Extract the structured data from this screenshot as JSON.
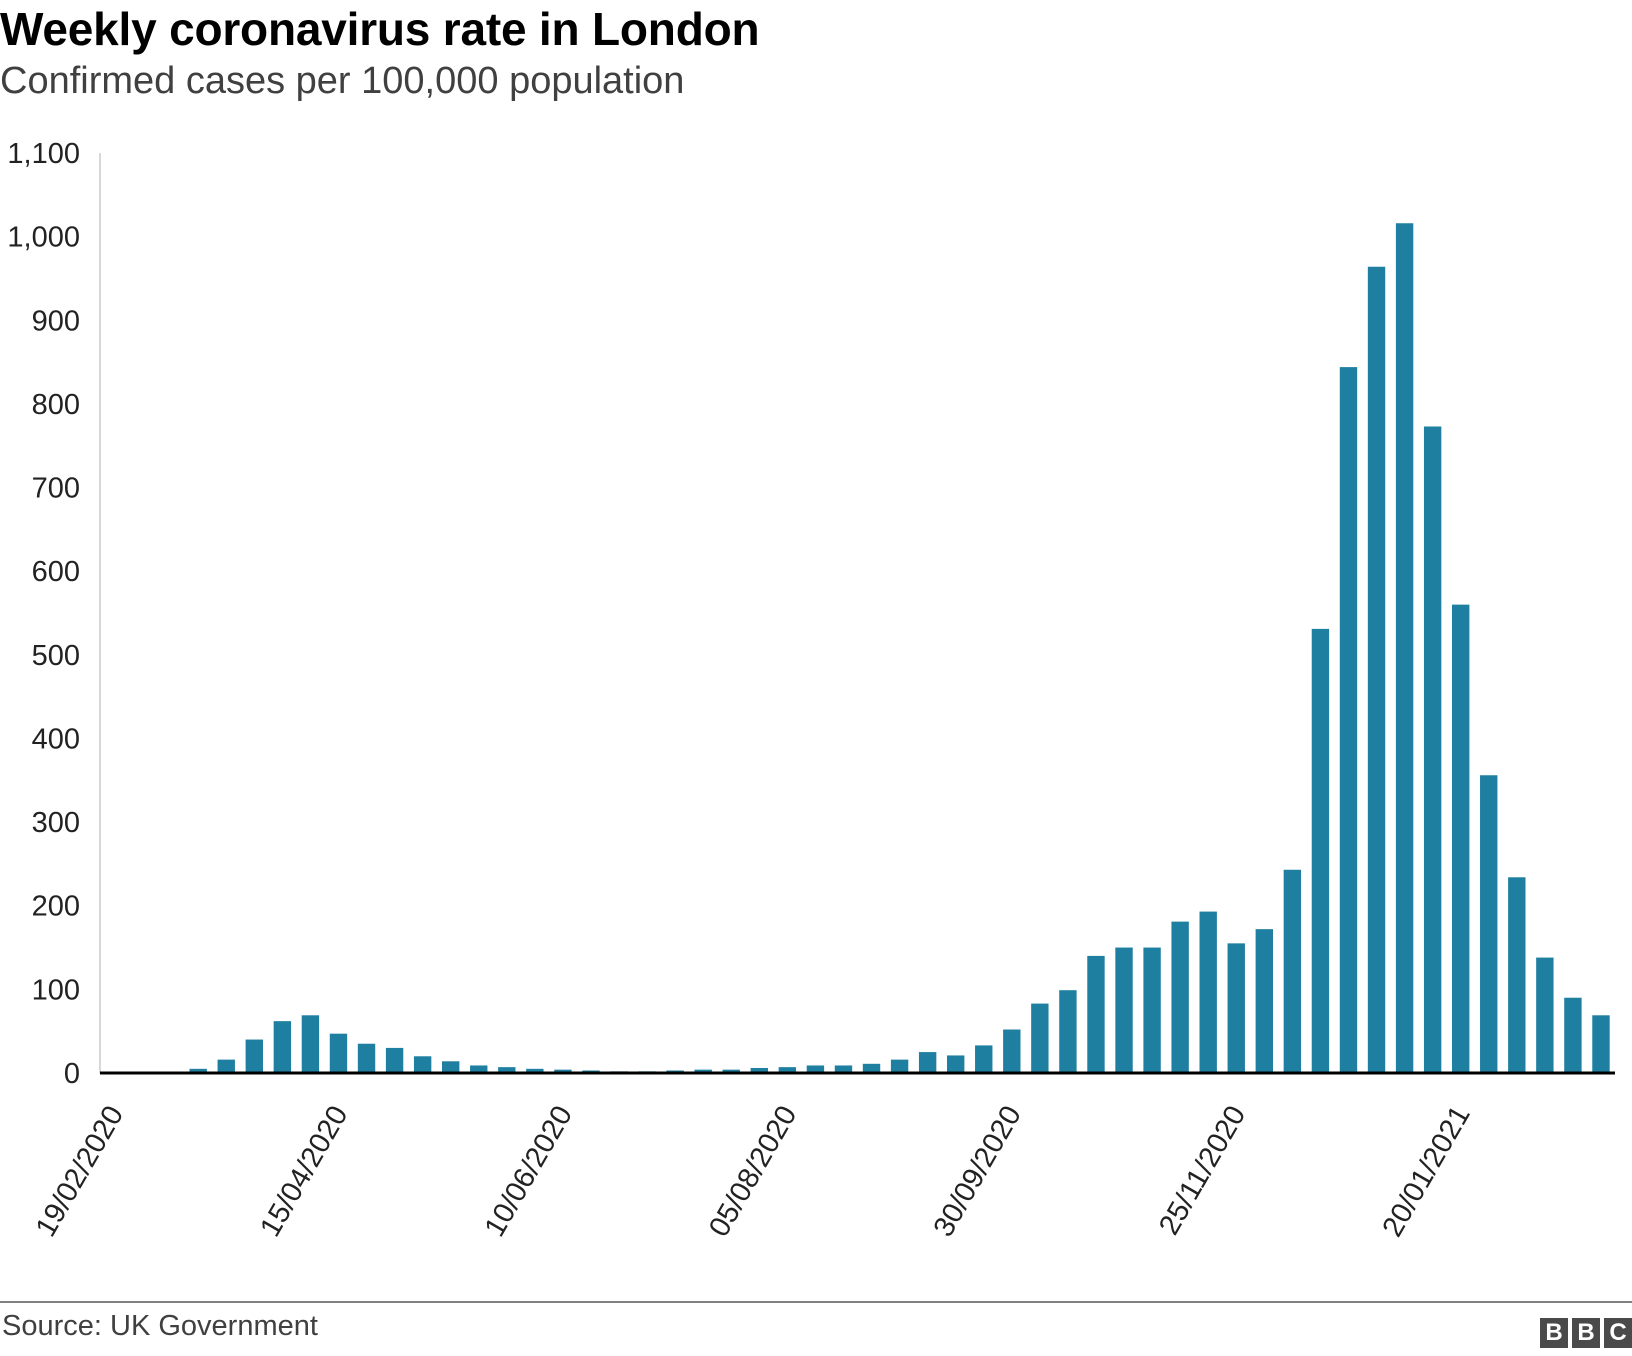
{
  "chart_data": {
    "type": "bar",
    "title": "Weekly coronavirus rate in London",
    "subtitle": "Confirmed cases per 100,000 population",
    "xlabel": "",
    "ylabel": "",
    "ylim": [
      0,
      1100
    ],
    "y_ticks": [
      0,
      100,
      200,
      300,
      400,
      500,
      600,
      700,
      800,
      900,
      1000,
      1100
    ],
    "y_tick_labels": [
      "0",
      "100",
      "200",
      "300",
      "400",
      "500",
      "600",
      "700",
      "800",
      "900",
      "1,000",
      "1,100"
    ],
    "x_tick_labels": [
      "19/02/2020",
      "15/04/2020",
      "10/06/2020",
      "05/08/2020",
      "30/09/2020",
      "25/11/2020",
      "20/01/2021"
    ],
    "x_tick_index": [
      0,
      8,
      16,
      24,
      32,
      40,
      48
    ],
    "color": "#1f7fa0",
    "grid": false,
    "values": [
      0,
      0,
      0,
      5,
      16,
      40,
      62,
      69,
      47,
      35,
      30,
      20,
      14,
      9,
      7,
      5,
      4,
      3,
      2,
      2,
      3,
      4,
      4,
      6,
      7,
      9,
      9,
      11,
      16,
      25,
      21,
      33,
      52,
      83,
      99,
      140,
      150,
      150,
      181,
      193,
      155,
      172,
      243,
      531,
      844,
      964,
      1016,
      773,
      560,
      356,
      234,
      138,
      90,
      69
    ]
  },
  "footer": {
    "source": "Source: UK Government",
    "logo_letters": [
      "B",
      "B",
      "C"
    ]
  }
}
